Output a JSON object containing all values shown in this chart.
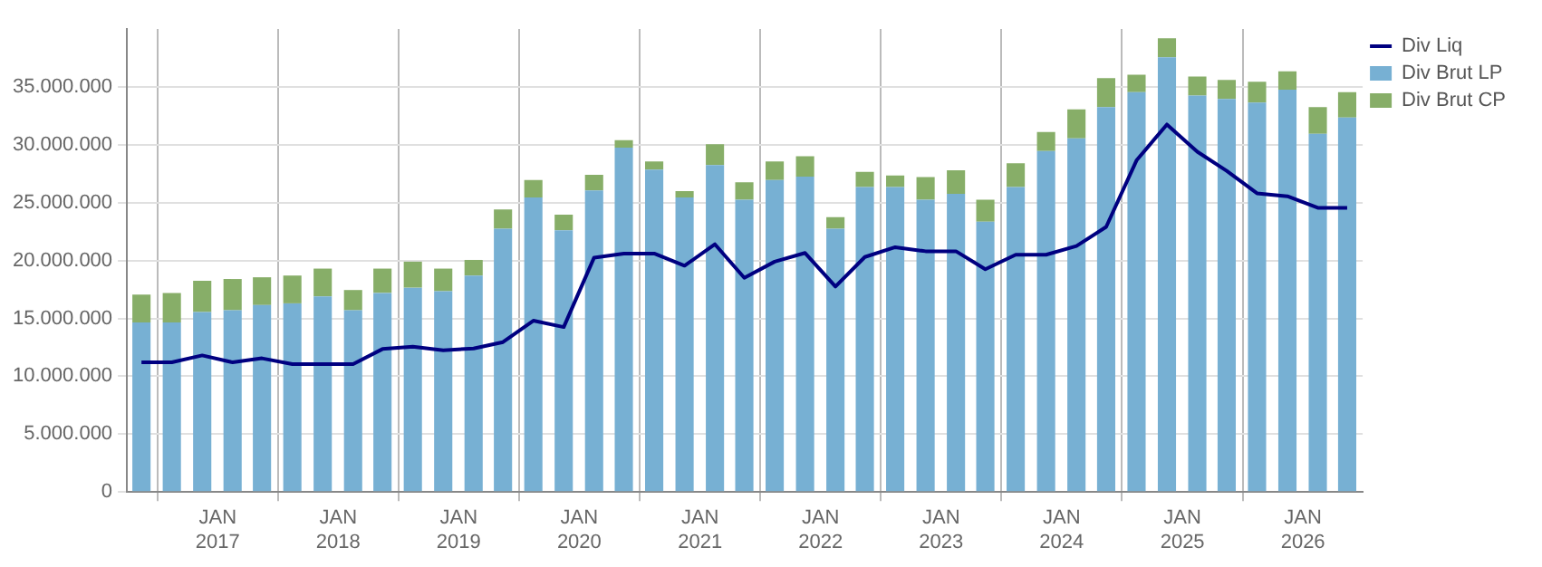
{
  "chart_data": {
    "type": "bar",
    "stacked": true,
    "grid": true,
    "legend": "right",
    "x": [
      "2016-05-15",
      "2016-08-15",
      "2016-11-15",
      "2017-02-15",
      "2017-05-15",
      "2017-08-15",
      "2017-11-15",
      "2018-02-15",
      "2018-05-15",
      "2018-08-15",
      "2018-11-15",
      "2019-02-15",
      "2019-05-15",
      "2019-08-15",
      "2019-11-15",
      "2020-02-15",
      "2020-05-15",
      "2020-08-15",
      "2020-11-15",
      "2021-02-15",
      "2021-05-15",
      "2021-08-15",
      "2021-11-15",
      "2022-02-15",
      "2022-05-15",
      "2022-08-15",
      "2022-11-15",
      "2023-02-15",
      "2023-05-15",
      "2023-08-15",
      "2023-11-15",
      "2024-02-15",
      "2024-05-15",
      "2024-08-15",
      "2024-11-15",
      "2025-02-15",
      "2025-05-15",
      "2025-08-15",
      "2025-11-15",
      "2026-02-15",
      "2026-05-15"
    ],
    "series": [
      {
        "name": "Div Brut LP",
        "color": "#77b0d3",
        "values": [
          14650000,
          14650000,
          15550000,
          15700000,
          16150000,
          16300000,
          16900000,
          15700000,
          17200000,
          17650000,
          17350000,
          18700000,
          22750000,
          25450000,
          22600000,
          26050000,
          29750000,
          27850000,
          25450000,
          28250000,
          25250000,
          26950000,
          27250000,
          22750000,
          26350000,
          26350000,
          25250000,
          25750000,
          23350000,
          26350000,
          29450000,
          30550000,
          33250000,
          34550000,
          37550000,
          34250000,
          33950000,
          33650000,
          34750000,
          30950000,
          32350000
        ]
      },
      {
        "name": "Div Brut CP",
        "color": "#87ae68",
        "values": [
          2400000,
          2550000,
          2700000,
          2700000,
          2400000,
          2400000,
          2400000,
          1750000,
          2100000,
          2250000,
          1950000,
          1350000,
          1650000,
          1500000,
          1350000,
          1350000,
          650000,
          700000,
          550000,
          1800000,
          1500000,
          1600000,
          1750000,
          1000000,
          1300000,
          1000000,
          1950000,
          2050000,
          1900000,
          2050000,
          1650000,
          2500000,
          2500000,
          1500000,
          1650000,
          1650000,
          1650000,
          1800000,
          1600000,
          2300000,
          2200000
        ]
      },
      {
        "name": "Div Liq",
        "type": "line",
        "color": "#000080",
        "values": [
          11200000,
          11200000,
          11800000,
          11200000,
          11550000,
          11050000,
          11050000,
          11050000,
          12350000,
          12550000,
          12250000,
          12400000,
          12950000,
          14800000,
          14250000,
          20250000,
          20600000,
          20600000,
          19550000,
          21400000,
          18500000,
          19900000,
          20650000,
          17750000,
          20300000,
          21150000,
          20800000,
          20800000,
          19250000,
          20500000,
          20500000,
          21250000,
          22900000,
          28650000,
          31750000,
          29400000,
          27750000,
          25800000,
          25550000,
          24550000,
          24550000
        ]
      }
    ],
    "xlim": [
      "2016-04-01",
      "2026-07-01"
    ],
    "xticks": [
      {
        "value": "2017-01-01",
        "label": "JAN 2017"
      },
      {
        "value": "2018-01-01",
        "label": "JAN 2018"
      },
      {
        "value": "2019-01-01",
        "label": "JAN 2019"
      },
      {
        "value": "2020-01-01",
        "label": "JAN 2020"
      },
      {
        "value": "2021-01-01",
        "label": "JAN 2021"
      },
      {
        "value": "2022-01-01",
        "label": "JAN 2022"
      },
      {
        "value": "2023-01-01",
        "label": "JAN 2023"
      },
      {
        "value": "2024-01-01",
        "label": "JAN 2024"
      },
      {
        "value": "2025-01-01",
        "label": "JAN 2025"
      },
      {
        "value": "2026-01-01",
        "label": "JAN 2026"
      }
    ],
    "ylim": [
      0,
      40000000
    ],
    "yticks": [
      0,
      {
        "value": 5000000,
        "label": "5.000.000"
      },
      {
        "value": 10000000,
        "label": "10.000.000"
      },
      {
        "value": 15000000,
        "label": "15.000.000"
      },
      {
        "value": 20000000,
        "label": "20.000.000"
      },
      {
        "value": 25000000,
        "label": "25.000.000"
      },
      {
        "value": 30000000,
        "label": "30.000.000"
      },
      {
        "value": 35000000,
        "label": "35.000.000"
      }
    ]
  }
}
